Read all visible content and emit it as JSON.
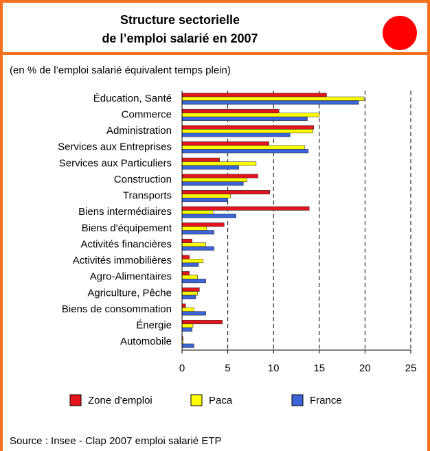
{
  "chart_data": {
    "type": "bar",
    "orientation": "horizontal",
    "title": [
      "Structure sectorielle",
      "de l’emploi salarié en 2007"
    ],
    "subtitle": "(en % de l’emploi salarié équivalent temps plein)",
    "source": "Source : Insee - Clap 2007 emploi salarié ETP",
    "categories": [
      "Éducation, Santé",
      "Commerce",
      "Administration",
      "Services aux Entreprises",
      "Services aux Particuliers",
      "Construction",
      "Transports",
      "Biens intermédiaires",
      "Biens d'équipement",
      "Activités financières",
      "Activités immobilières",
      "Agro-Alimentaires",
      "Agriculture, Pêche",
      "Biens de consommation",
      "Énergie",
      "Automobile"
    ],
    "series": [
      {
        "name": "Zone d'emploi",
        "color": "#e3141b",
        "values": [
          15.8,
          10.6,
          14.4,
          9.5,
          4.1,
          8.3,
          9.6,
          13.9,
          4.6,
          1.1,
          0.8,
          0.8,
          1.9,
          0.4,
          4.4,
          0.1
        ]
      },
      {
        "name": "Paca",
        "color": "#ffff00",
        "values": [
          19.9,
          15.0,
          14.3,
          13.4,
          8.1,
          7.1,
          5.3,
          3.4,
          2.7,
          2.6,
          2.3,
          1.7,
          1.7,
          1.3,
          1.2,
          0.1
        ]
      },
      {
        "name": "France",
        "color": "#3a64d8",
        "values": [
          19.3,
          13.7,
          11.8,
          13.8,
          6.2,
          6.7,
          5.0,
          5.9,
          3.5,
          3.5,
          1.8,
          2.6,
          1.5,
          2.6,
          1.1,
          1.3
        ]
      }
    ],
    "xlim": [
      0,
      25
    ],
    "xticks": [
      0,
      5,
      10,
      15,
      20,
      25
    ],
    "grid": true,
    "legend": "bottom"
  }
}
